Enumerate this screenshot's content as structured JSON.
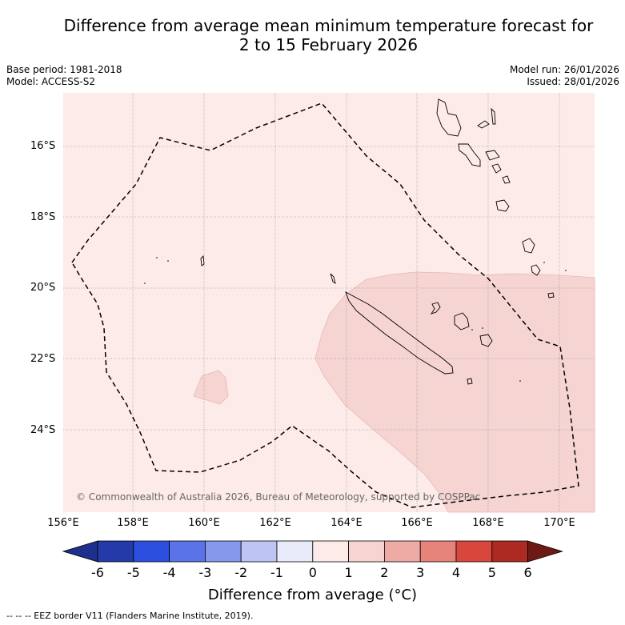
{
  "title": {
    "line1": "Difference from average mean minimum temperature forecast for",
    "line2": "2 to 15 February 2026"
  },
  "meta": {
    "base_period": "Base period: 1981-2018",
    "model": "Model: ACCESS-S2",
    "model_run": "Model run: 26/01/2026",
    "issued": "Issued: 28/01/2026"
  },
  "map": {
    "latitude_labels": [
      "16°S",
      "18°S",
      "20°S",
      "22°S",
      "24°S"
    ],
    "longitude_labels": [
      "156°E",
      "158°E",
      "160°E",
      "162°E",
      "164°E",
      "166°E",
      "168°E",
      "170°E"
    ],
    "copyright": "© Commonwealth of Australia 2026, Bureau of Meteorology, supported by COSPPac",
    "colors": {
      "band_0_1": "#fcebe9",
      "band_1_2": "#f5d4d2",
      "gridline": "#888888",
      "eez_border": "#000000"
    }
  },
  "colorbar": {
    "ticks": [
      "-6",
      "-5",
      "-4",
      "-3",
      "-2",
      "-1",
      "0",
      "1",
      "2",
      "3",
      "4",
      "5",
      "6"
    ],
    "colors": [
      "#1e2f8c",
      "#233aa8",
      "#2d4fe0",
      "#5a73e6",
      "#8598ec",
      "#bcc5f3",
      "#e8ebfa",
      "#fcebe9",
      "#f5d4d2",
      "#eeaba6",
      "#e6837b",
      "#d9463c",
      "#ad2a22",
      "#6e1a14"
    ],
    "title": "Difference from average (°C)"
  },
  "footnote": "-- -- -- EEZ border V11 (Flanders Marine Institute, 2019)."
}
